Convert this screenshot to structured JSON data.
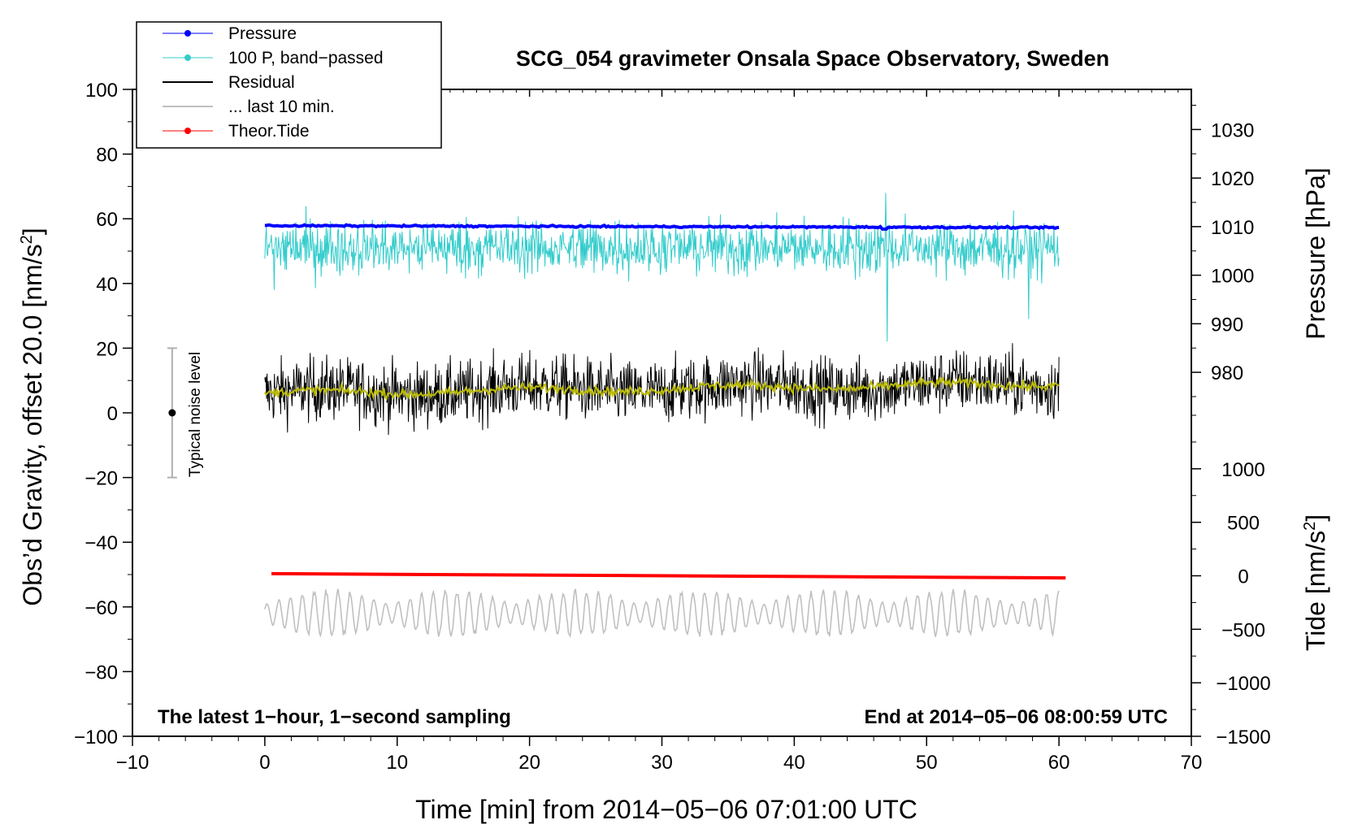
{
  "chart_data": {
    "type": "line",
    "title": "SCG_054 gravimeter Onsala Space Observatory, Sweden",
    "xlabel": "Time [min] from 2014−05−06 07:01:00 UTC",
    "ylabel_main": "Obs’d Gravity, offset 20.0 [nm/s",
    "ylabel_main_sup": "2",
    "ylabel_main_end": "]",
    "ylabel_pressure": "Pressure [hPa]",
    "ylabel_tide": "Tide [nm/s",
    "ylabel_tide_sup": "2",
    "ylabel_tide_end": "]",
    "xlim": [
      -10,
      70
    ],
    "ylim": [
      -100,
      100
    ],
    "pressure_axis_range": [
      975,
      1035
    ],
    "tide_axis_range": [
      -1500,
      1500
    ],
    "x_ticks": [
      {
        "v": -10,
        "label": "−10"
      },
      {
        "v": 0,
        "label": "0"
      },
      {
        "v": 10,
        "label": "10"
      },
      {
        "v": 20,
        "label": "20"
      },
      {
        "v": 30,
        "label": "30"
      },
      {
        "v": 40,
        "label": "40"
      },
      {
        "v": 50,
        "label": "50"
      },
      {
        "v": 60,
        "label": "60"
      },
      {
        "v": 70,
        "label": "70"
      }
    ],
    "y_ticks": [
      {
        "v": 100,
        "label": "100"
      },
      {
        "v": 80,
        "label": "80"
      },
      {
        "v": 60,
        "label": "60"
      },
      {
        "v": 40,
        "label": "40"
      },
      {
        "v": 20,
        "label": "20"
      },
      {
        "v": 0,
        "label": "0"
      },
      {
        "v": -20,
        "label": "−20"
      },
      {
        "v": -40,
        "label": "−40"
      },
      {
        "v": -60,
        "label": "−60"
      },
      {
        "v": -80,
        "label": "−80"
      },
      {
        "v": -100,
        "label": "−100"
      }
    ],
    "pressure_ticks": [
      {
        "v": 1030,
        "label": "1030"
      },
      {
        "v": 1020,
        "label": "1020"
      },
      {
        "v": 1010,
        "label": "1010"
      },
      {
        "v": 1000,
        "label": "1000"
      },
      {
        "v": 990,
        "label": "990"
      },
      {
        "v": 980,
        "label": "980"
      }
    ],
    "tide_ticks": [
      {
        "v": 1000,
        "label": "1000"
      },
      {
        "v": 500,
        "label": "500"
      },
      {
        "v": 0,
        "label": "0"
      },
      {
        "v": -500,
        "label": "−500"
      },
      {
        "v": -1000,
        "label": "−1000"
      },
      {
        "v": -1500,
        "label": "−1500"
      }
    ],
    "legend": [
      {
        "label": "Pressure",
        "color": "#0000ff",
        "marker": true
      },
      {
        "label": "100 P, band−passed",
        "color": "#33cccc",
        "marker": true
      },
      {
        "label": "Residual",
        "color": "#000000",
        "marker": false
      },
      {
        "label": "... last 10 min.",
        "color": "#c0c0c0",
        "marker": false
      },
      {
        "label": "Theor.Tide",
        "color": "#ff0000",
        "marker": true
      }
    ],
    "legend_position": "top-left",
    "grid": false,
    "annotations": {
      "bottom_left": "The latest 1−hour, 1−second sampling",
      "bottom_right": "End at 2014−05−06 08:00:59 UTC",
      "noise": "Typical noise level"
    },
    "noise_bar": {
      "x": -7,
      "center": 0,
      "low": -20,
      "high": 20
    },
    "series": [
      {
        "name": "Pressure",
        "axis": "pressure",
        "color": "#0000ff",
        "x_range": [
          0,
          60
        ],
        "start": 1010.2,
        "end": 1009.8,
        "spike": {
          "x": 46.8,
          "value": 1009.5
        }
      },
      {
        "name": "100 P, band−passed",
        "axis": "main",
        "color": "#33cccc",
        "x_range": [
          0,
          60
        ],
        "baseline": 51,
        "amplitude": 7,
        "spikes": [
          {
            "x": 47.0,
            "value": 22
          },
          {
            "x": 46.9,
            "value": 68
          },
          {
            "x": 0.7,
            "value": 38
          },
          {
            "x": 57.7,
            "value": 29
          }
        ]
      },
      {
        "name": "Residual",
        "axis": "main",
        "color": "#000000",
        "x_range": [
          0,
          60
        ],
        "start": 6,
        "end": 9,
        "amplitude": 7
      },
      {
        "name": "Residual smoothed",
        "axis": "main",
        "color": "#bbbb00",
        "x_range": [
          0,
          60
        ],
        "start": 6,
        "end": 9
      },
      {
        "name": "... last 10 min.",
        "axis": "main",
        "color": "#c0c0c0",
        "x_range": [
          0,
          60
        ],
        "baseline": -62,
        "amplitude": 6
      },
      {
        "name": "Theor.Tide",
        "axis": "tide",
        "color": "#ff0000",
        "x_range": [
          0.5,
          60.5
        ],
        "start": 20,
        "end": -20
      }
    ]
  }
}
